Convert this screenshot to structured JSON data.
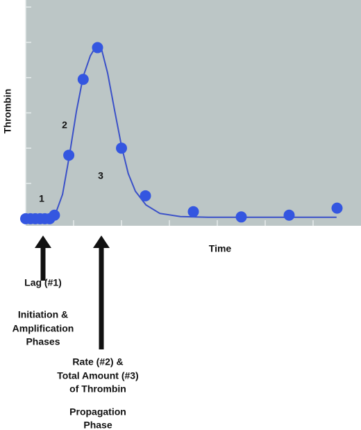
{
  "chart_data": {
    "type": "scatter",
    "ylabel": "Thrombin",
    "xlabel": "Time",
    "xlim": [
      0,
      7
    ],
    "ylim": [
      -0.2,
      6.2
    ],
    "xticks": [
      1,
      2,
      3,
      4,
      5,
      6
    ],
    "yticks": [
      0,
      1,
      2,
      3,
      4,
      5,
      6
    ],
    "background": "#bcc6c6",
    "series": [
      {
        "color": "#3456e0",
        "x": [
          0,
          0.1,
          0.2,
          0.3,
          0.4,
          0.5,
          0.6,
          0.9,
          1.2,
          1.5,
          2,
          2.5,
          3.5,
          4.5,
          5.5,
          6.5
        ],
        "values": [
          0,
          0,
          0,
          0,
          0,
          0,
          0.1,
          1.8,
          3.95,
          4.85,
          2,
          0.65,
          0.2,
          0.05,
          0.1,
          0.3
        ]
      }
    ],
    "fit": {
      "color": "#3a50c8",
      "x": [
        0,
        0.48,
        0.62,
        0.77,
        0.91,
        1.06,
        1.2,
        1.35,
        1.49,
        1.57,
        1.71,
        1.86,
        2,
        2.14,
        2.29,
        2.51,
        2.8,
        3.23,
        3.81,
        6.49
      ],
      "values": [
        0,
        0.02,
        0.13,
        0.69,
        1.77,
        3.05,
        4.03,
        4.62,
        4.94,
        4.88,
        4.13,
        3.05,
        2.06,
        1.28,
        0.78,
        0.39,
        0.15,
        0.06,
        0.04,
        0.04
      ]
    },
    "annotations": [
      "1",
      "2",
      "3",
      "Lag (#1)",
      "Initiation &",
      "Amplification",
      "Phases",
      "Rate (#2) &",
      "Total Amount (#3)",
      "of Thrombin",
      "Propagation",
      "Phase"
    ]
  }
}
